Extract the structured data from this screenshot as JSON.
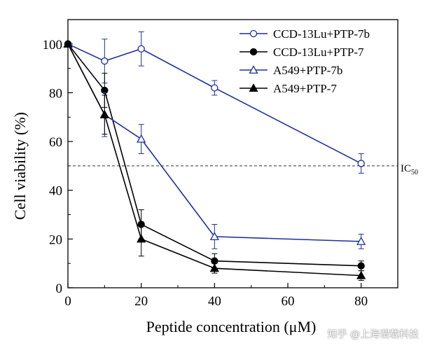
{
  "chart_data": {
    "type": "line",
    "xlabel": "Peptide concentration (μM)",
    "ylabel": "Cell viability (%)",
    "xlim": [
      0,
      90
    ],
    "ylim": [
      0,
      110
    ],
    "xticks": [
      0,
      20,
      40,
      60,
      80
    ],
    "yticks": [
      0,
      20,
      40,
      60,
      80,
      100
    ],
    "xtick_labels": [
      "0",
      "20",
      "40",
      "60",
      "80"
    ],
    "ytick_labels": [
      "0",
      "20",
      "40",
      "60",
      "80",
      "100"
    ],
    "grid": false,
    "legend_position": "top-right",
    "x": [
      0,
      10,
      20,
      40,
      80
    ],
    "series": [
      {
        "name": "CCD-13Lu+PTP-7b",
        "values": [
          100,
          93,
          98,
          82,
          51
        ],
        "errors": [
          0,
          9,
          7,
          3,
          4
        ],
        "color": "#1f2fa0",
        "marker": "circle-open"
      },
      {
        "name": "CCD-13Lu+PTP-7",
        "values": [
          100,
          81,
          26,
          11,
          9
        ],
        "errors": [
          0,
          7,
          6,
          3,
          2
        ],
        "color": "#000000",
        "marker": "circle-filled"
      },
      {
        "name": "A549+PTP-7b",
        "values": [
          100,
          71,
          61,
          21,
          19
        ],
        "errors": [
          0,
          9,
          6,
          5,
          3
        ],
        "color": "#1f2fa0",
        "marker": "triangle-open"
      },
      {
        "name": "A549+PTP-7",
        "values": [
          100,
          71,
          20,
          8,
          5
        ],
        "errors": [
          0,
          8,
          7,
          2,
          2
        ],
        "color": "#000000",
        "marker": "triangle-filled"
      }
    ],
    "reference_line": {
      "y": 50,
      "label": "IC",
      "label_sub": "50"
    }
  },
  "watermark": "知乎 @上海谓载科技"
}
